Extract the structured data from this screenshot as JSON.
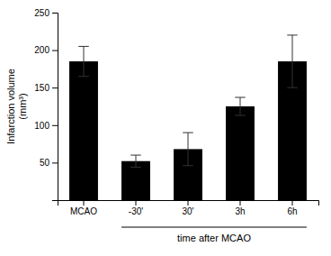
{
  "chart_data": {
    "type": "bar",
    "categories": [
      "MCAO",
      "-30'",
      "30'",
      "3h",
      "6h"
    ],
    "values": [
      185,
      52,
      68,
      125,
      185
    ],
    "errors": [
      20,
      8,
      22,
      12,
      35
    ],
    "color": "#000000",
    "ylabel": "Infarction volume\n(mm³)",
    "ylim": [
      0,
      250
    ],
    "yticks": [
      50,
      100,
      150,
      200,
      250
    ],
    "grid": false,
    "annotations": [
      {
        "text": "time after MCAO",
        "from": "-30'",
        "to": "6h"
      }
    ]
  }
}
